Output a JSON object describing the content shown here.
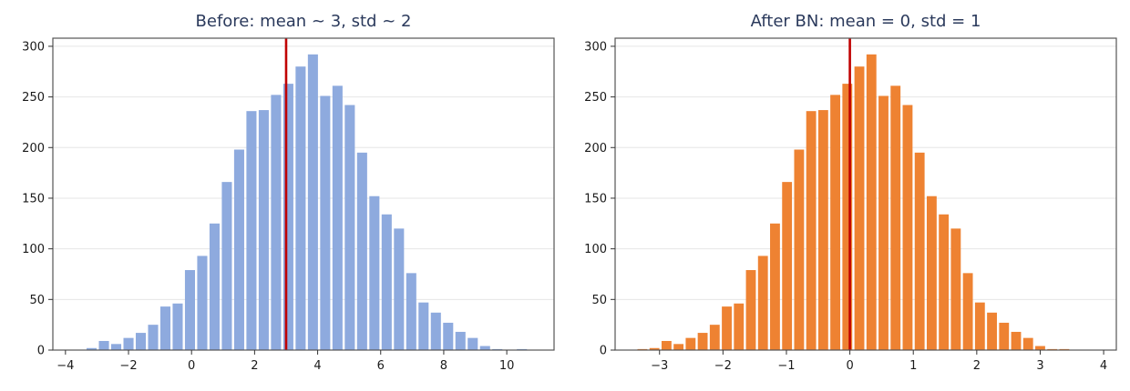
{
  "chart_data": [
    {
      "type": "bar",
      "title": "Before: mean ~ 3, std ~ 2",
      "xlabel": "",
      "ylabel": "",
      "xlim": [
        -4.4,
        11.5
      ],
      "ylim": [
        0,
        308
      ],
      "xticks": [
        -4,
        -2,
        0,
        2,
        4,
        6,
        8,
        10
      ],
      "yticks": [
        0,
        50,
        100,
        150,
        200,
        250,
        300
      ],
      "grid": "y",
      "bar_color": "#8eaade",
      "mean_line": {
        "x": 3.0,
        "color": "#c00000"
      },
      "bins": [
        {
          "x": -3.17,
          "count": 2
        },
        {
          "x": -2.78,
          "count": 9
        },
        {
          "x": -2.39,
          "count": 6
        },
        {
          "x": -2.0,
          "count": 12
        },
        {
          "x": -1.61,
          "count": 17
        },
        {
          "x": -1.22,
          "count": 25
        },
        {
          "x": -0.83,
          "count": 43
        },
        {
          "x": -0.44,
          "count": 46
        },
        {
          "x": -0.05,
          "count": 79
        },
        {
          "x": 0.34,
          "count": 93
        },
        {
          "x": 0.73,
          "count": 125
        },
        {
          "x": 1.12,
          "count": 166
        },
        {
          "x": 1.51,
          "count": 198
        },
        {
          "x": 1.9,
          "count": 236
        },
        {
          "x": 2.29,
          "count": 237
        },
        {
          "x": 2.68,
          "count": 252
        },
        {
          "x": 3.07,
          "count": 263
        },
        {
          "x": 3.46,
          "count": 280
        },
        {
          "x": 3.85,
          "count": 292
        },
        {
          "x": 4.24,
          "count": 251
        },
        {
          "x": 4.63,
          "count": 261
        },
        {
          "x": 5.02,
          "count": 242
        },
        {
          "x": 5.41,
          "count": 195
        },
        {
          "x": 5.8,
          "count": 152
        },
        {
          "x": 6.19,
          "count": 134
        },
        {
          "x": 6.58,
          "count": 120
        },
        {
          "x": 6.97,
          "count": 76
        },
        {
          "x": 7.36,
          "count": 47
        },
        {
          "x": 7.75,
          "count": 37
        },
        {
          "x": 8.14,
          "count": 27
        },
        {
          "x": 8.53,
          "count": 18
        },
        {
          "x": 8.92,
          "count": 12
        },
        {
          "x": 9.31,
          "count": 4
        },
        {
          "x": 9.7,
          "count": 1
        },
        {
          "x": 10.48,
          "count": 1
        }
      ]
    },
    {
      "type": "bar",
      "title": "After BN: mean = 0, std = 1",
      "xlabel": "",
      "ylabel": "",
      "xlim": [
        -3.7,
        4.2
      ],
      "ylim": [
        0,
        308
      ],
      "xticks": [
        -3,
        -2,
        -1,
        0,
        1,
        2,
        3,
        4
      ],
      "yticks": [
        0,
        50,
        100,
        150,
        200,
        250,
        300
      ],
      "grid": "y",
      "bar_color": "#ee8232",
      "mean_line": {
        "x": 0.0,
        "color": "#c00000"
      },
      "bins": [
        {
          "x": -3.27,
          "count": 1
        },
        {
          "x": -3.08,
          "count": 2
        },
        {
          "x": -2.89,
          "count": 9
        },
        {
          "x": -2.7,
          "count": 6
        },
        {
          "x": -2.51,
          "count": 12
        },
        {
          "x": -2.32,
          "count": 17
        },
        {
          "x": -2.13,
          "count": 25
        },
        {
          "x": -1.94,
          "count": 43
        },
        {
          "x": -1.75,
          "count": 46
        },
        {
          "x": -1.56,
          "count": 79
        },
        {
          "x": -1.37,
          "count": 93
        },
        {
          "x": -1.18,
          "count": 125
        },
        {
          "x": -0.99,
          "count": 166
        },
        {
          "x": -0.8,
          "count": 198
        },
        {
          "x": -0.61,
          "count": 236
        },
        {
          "x": -0.42,
          "count": 237
        },
        {
          "x": -0.23,
          "count": 252
        },
        {
          "x": -0.04,
          "count": 263
        },
        {
          "x": 0.15,
          "count": 280
        },
        {
          "x": 0.34,
          "count": 292
        },
        {
          "x": 0.53,
          "count": 251
        },
        {
          "x": 0.72,
          "count": 261
        },
        {
          "x": 0.91,
          "count": 242
        },
        {
          "x": 1.1,
          "count": 195
        },
        {
          "x": 1.29,
          "count": 152
        },
        {
          "x": 1.48,
          "count": 134
        },
        {
          "x": 1.67,
          "count": 120
        },
        {
          "x": 1.86,
          "count": 76
        },
        {
          "x": 2.05,
          "count": 47
        },
        {
          "x": 2.24,
          "count": 37
        },
        {
          "x": 2.43,
          "count": 27
        },
        {
          "x": 2.62,
          "count": 18
        },
        {
          "x": 2.81,
          "count": 12
        },
        {
          "x": 3.0,
          "count": 4
        },
        {
          "x": 3.19,
          "count": 1
        },
        {
          "x": 3.38,
          "count": 1
        }
      ]
    }
  ]
}
